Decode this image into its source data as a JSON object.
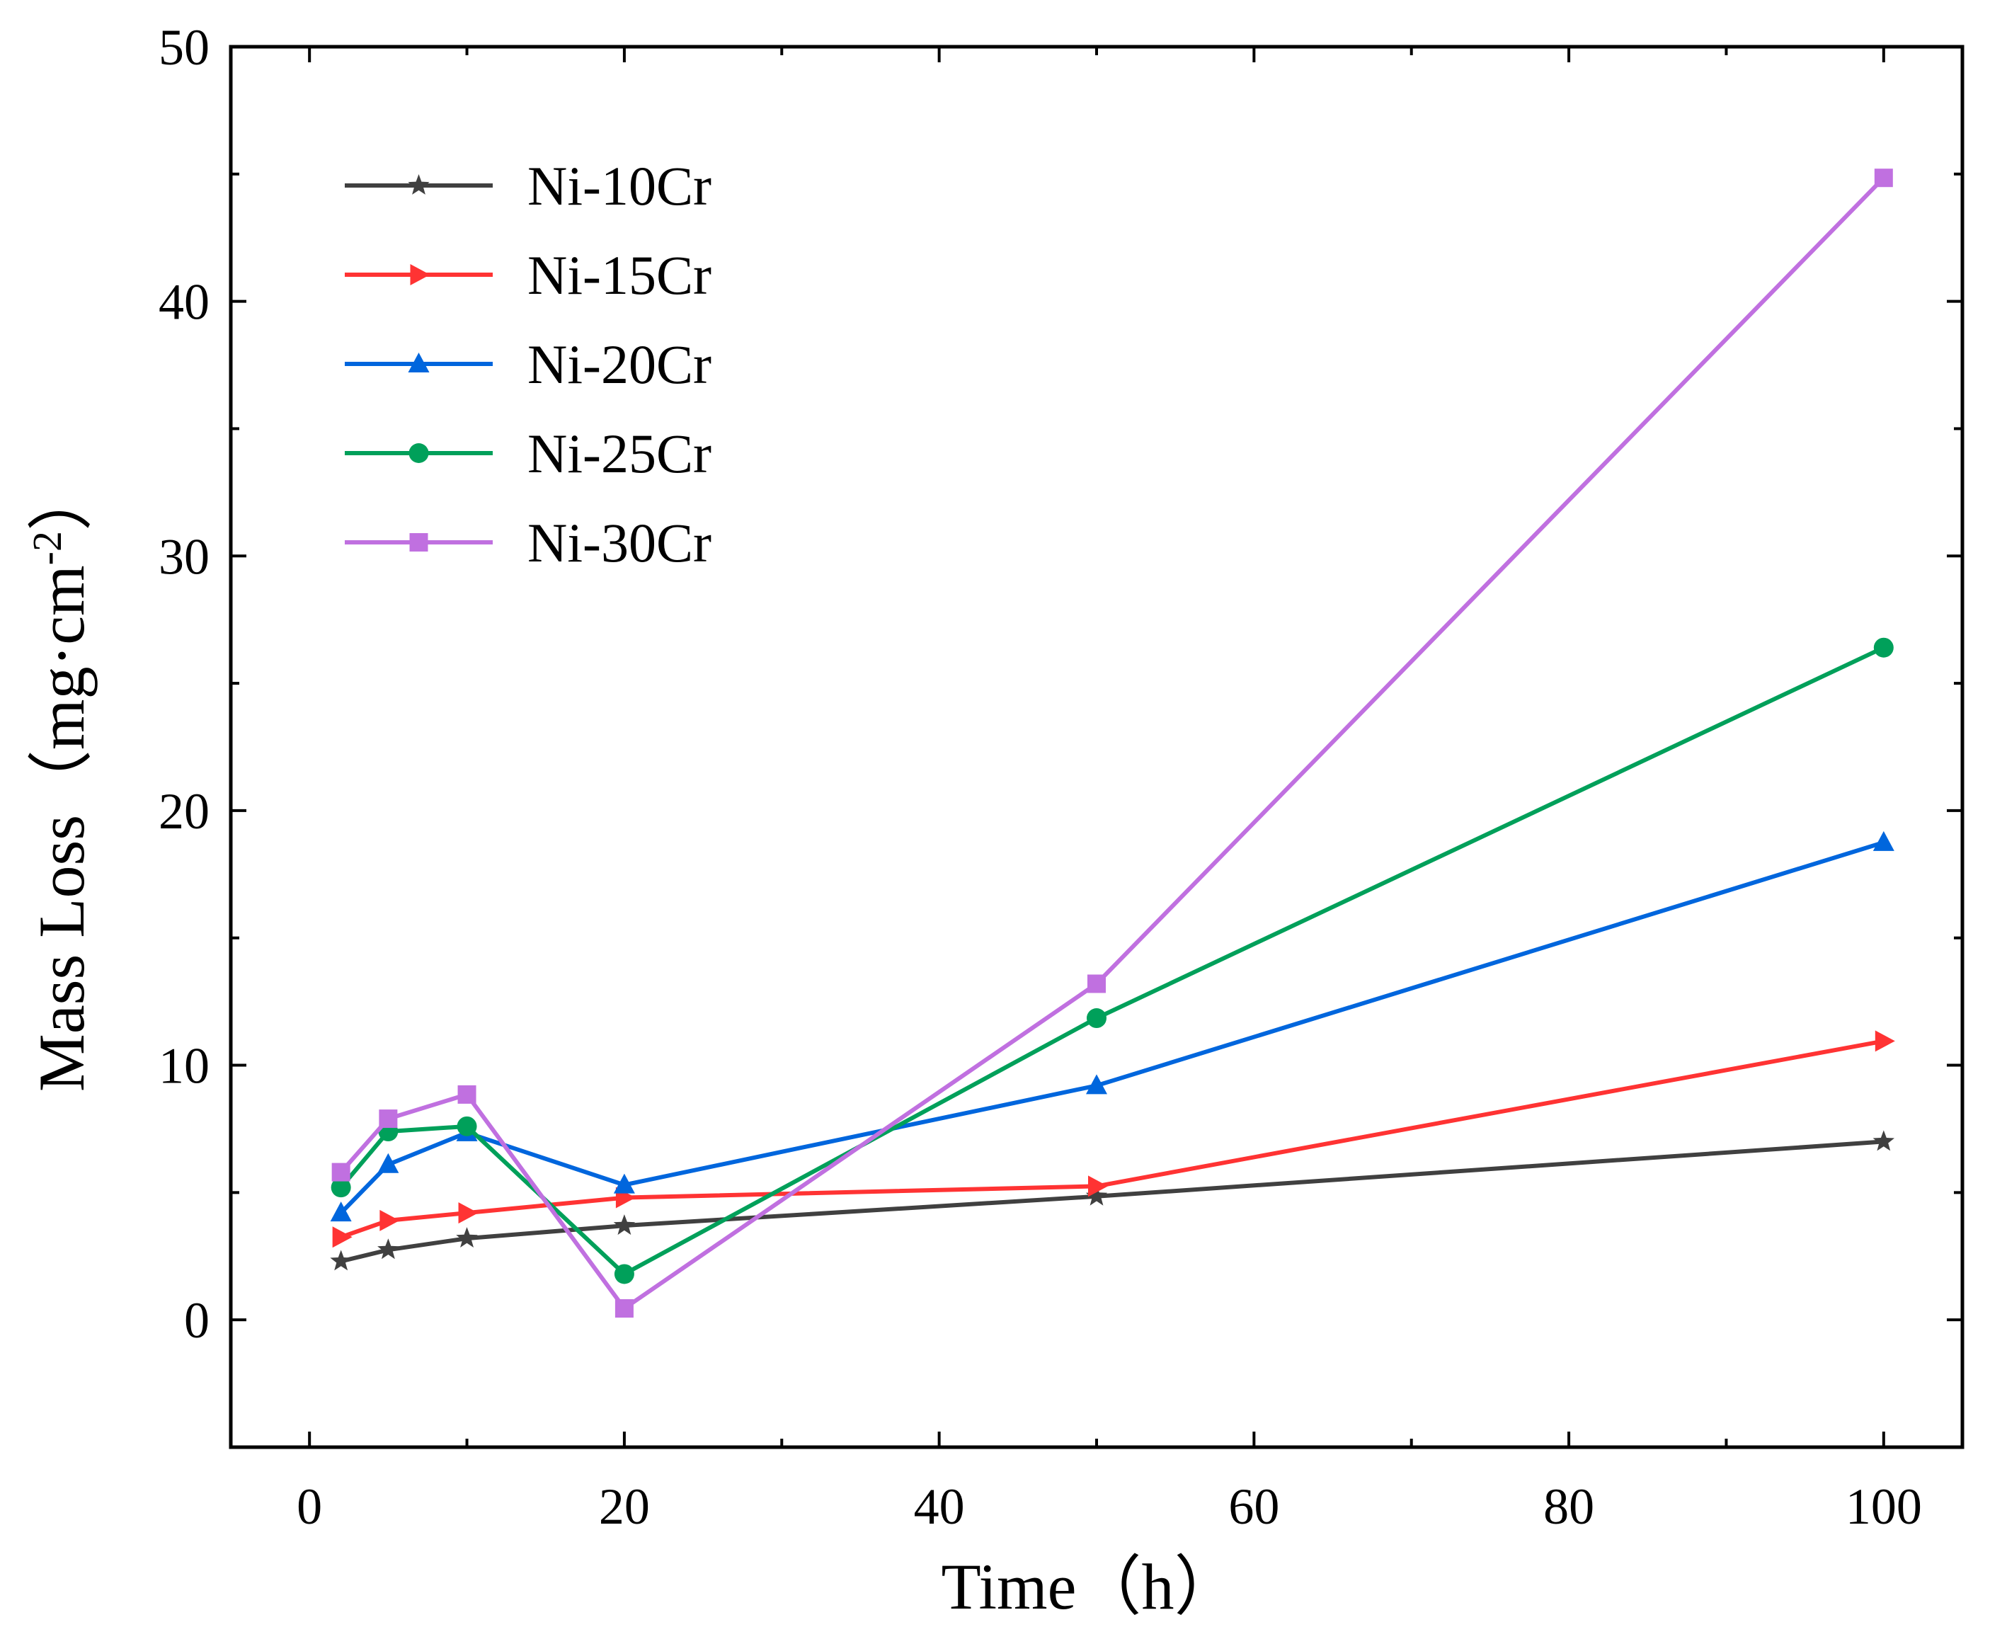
{
  "chart_data": {
    "type": "line",
    "title": "",
    "xlabel": "Time（h）",
    "ylabel_main": "Mass Loss（mg·cm",
    "ylabel_sup": "-2",
    "ylabel_close": "）",
    "xlim": [
      -5,
      105
    ],
    "ylim": [
      -5,
      50
    ],
    "xticks": [
      0,
      20,
      40,
      60,
      80,
      100
    ],
    "xtick_labels": [
      "0",
      "20",
      "40",
      "60",
      "80",
      "100"
    ],
    "xminor": [
      10,
      30,
      50,
      70,
      90
    ],
    "yticks": [
      0,
      10,
      20,
      30,
      40,
      50
    ],
    "ytick_labels": [
      "0",
      "10",
      "20",
      "30",
      "40",
      "50"
    ],
    "yminor": [
      -5,
      5,
      15,
      25,
      35,
      45
    ],
    "grid": false,
    "legend_position": "top-left",
    "x": [
      2,
      5,
      10,
      20,
      50,
      100
    ],
    "series": [
      {
        "name": "Ni-10Cr",
        "color": "#404040",
        "marker": "star",
        "values": [
          2.3,
          2.75,
          3.2,
          3.7,
          4.85,
          7.0
        ]
      },
      {
        "name": "Ni-15Cr",
        "color": "#ff3333",
        "marker": "triangle-right",
        "values": [
          3.25,
          3.9,
          4.2,
          4.8,
          5.25,
          10.95
        ]
      },
      {
        "name": "Ni-20Cr",
        "color": "#0066dd",
        "marker": "triangle-up",
        "values": [
          4.2,
          6.1,
          7.35,
          5.3,
          9.2,
          18.75
        ]
      },
      {
        "name": "Ni-25Cr",
        "color": "#00a05a",
        "marker": "circle",
        "values": [
          5.2,
          7.4,
          7.6,
          1.8,
          11.85,
          26.4
        ]
      },
      {
        "name": "Ni-30Cr",
        "color": "#c070e0",
        "marker": "square",
        "values": [
          5.8,
          7.9,
          8.85,
          0.45,
          13.2,
          44.85
        ]
      }
    ]
  }
}
